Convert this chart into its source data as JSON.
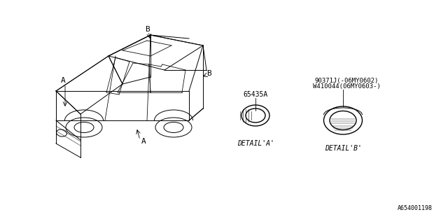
{
  "background_color": "#ffffff",
  "line_color": "#000000",
  "text_color": "#000000",
  "title": "",
  "watermark": "A654001198",
  "part_a_label": "65435A",
  "part_b_label": "90371J(-06MY0602)\nW410044(06MY0603-)",
  "detail_a_label": "DETAIL'A'",
  "detail_b_label": "DETAIL'B'",
  "label_a": "A",
  "label_b": "B",
  "font_size_part": 7,
  "font_size_detail": 7,
  "font_size_label": 8,
  "font_size_watermark": 6
}
